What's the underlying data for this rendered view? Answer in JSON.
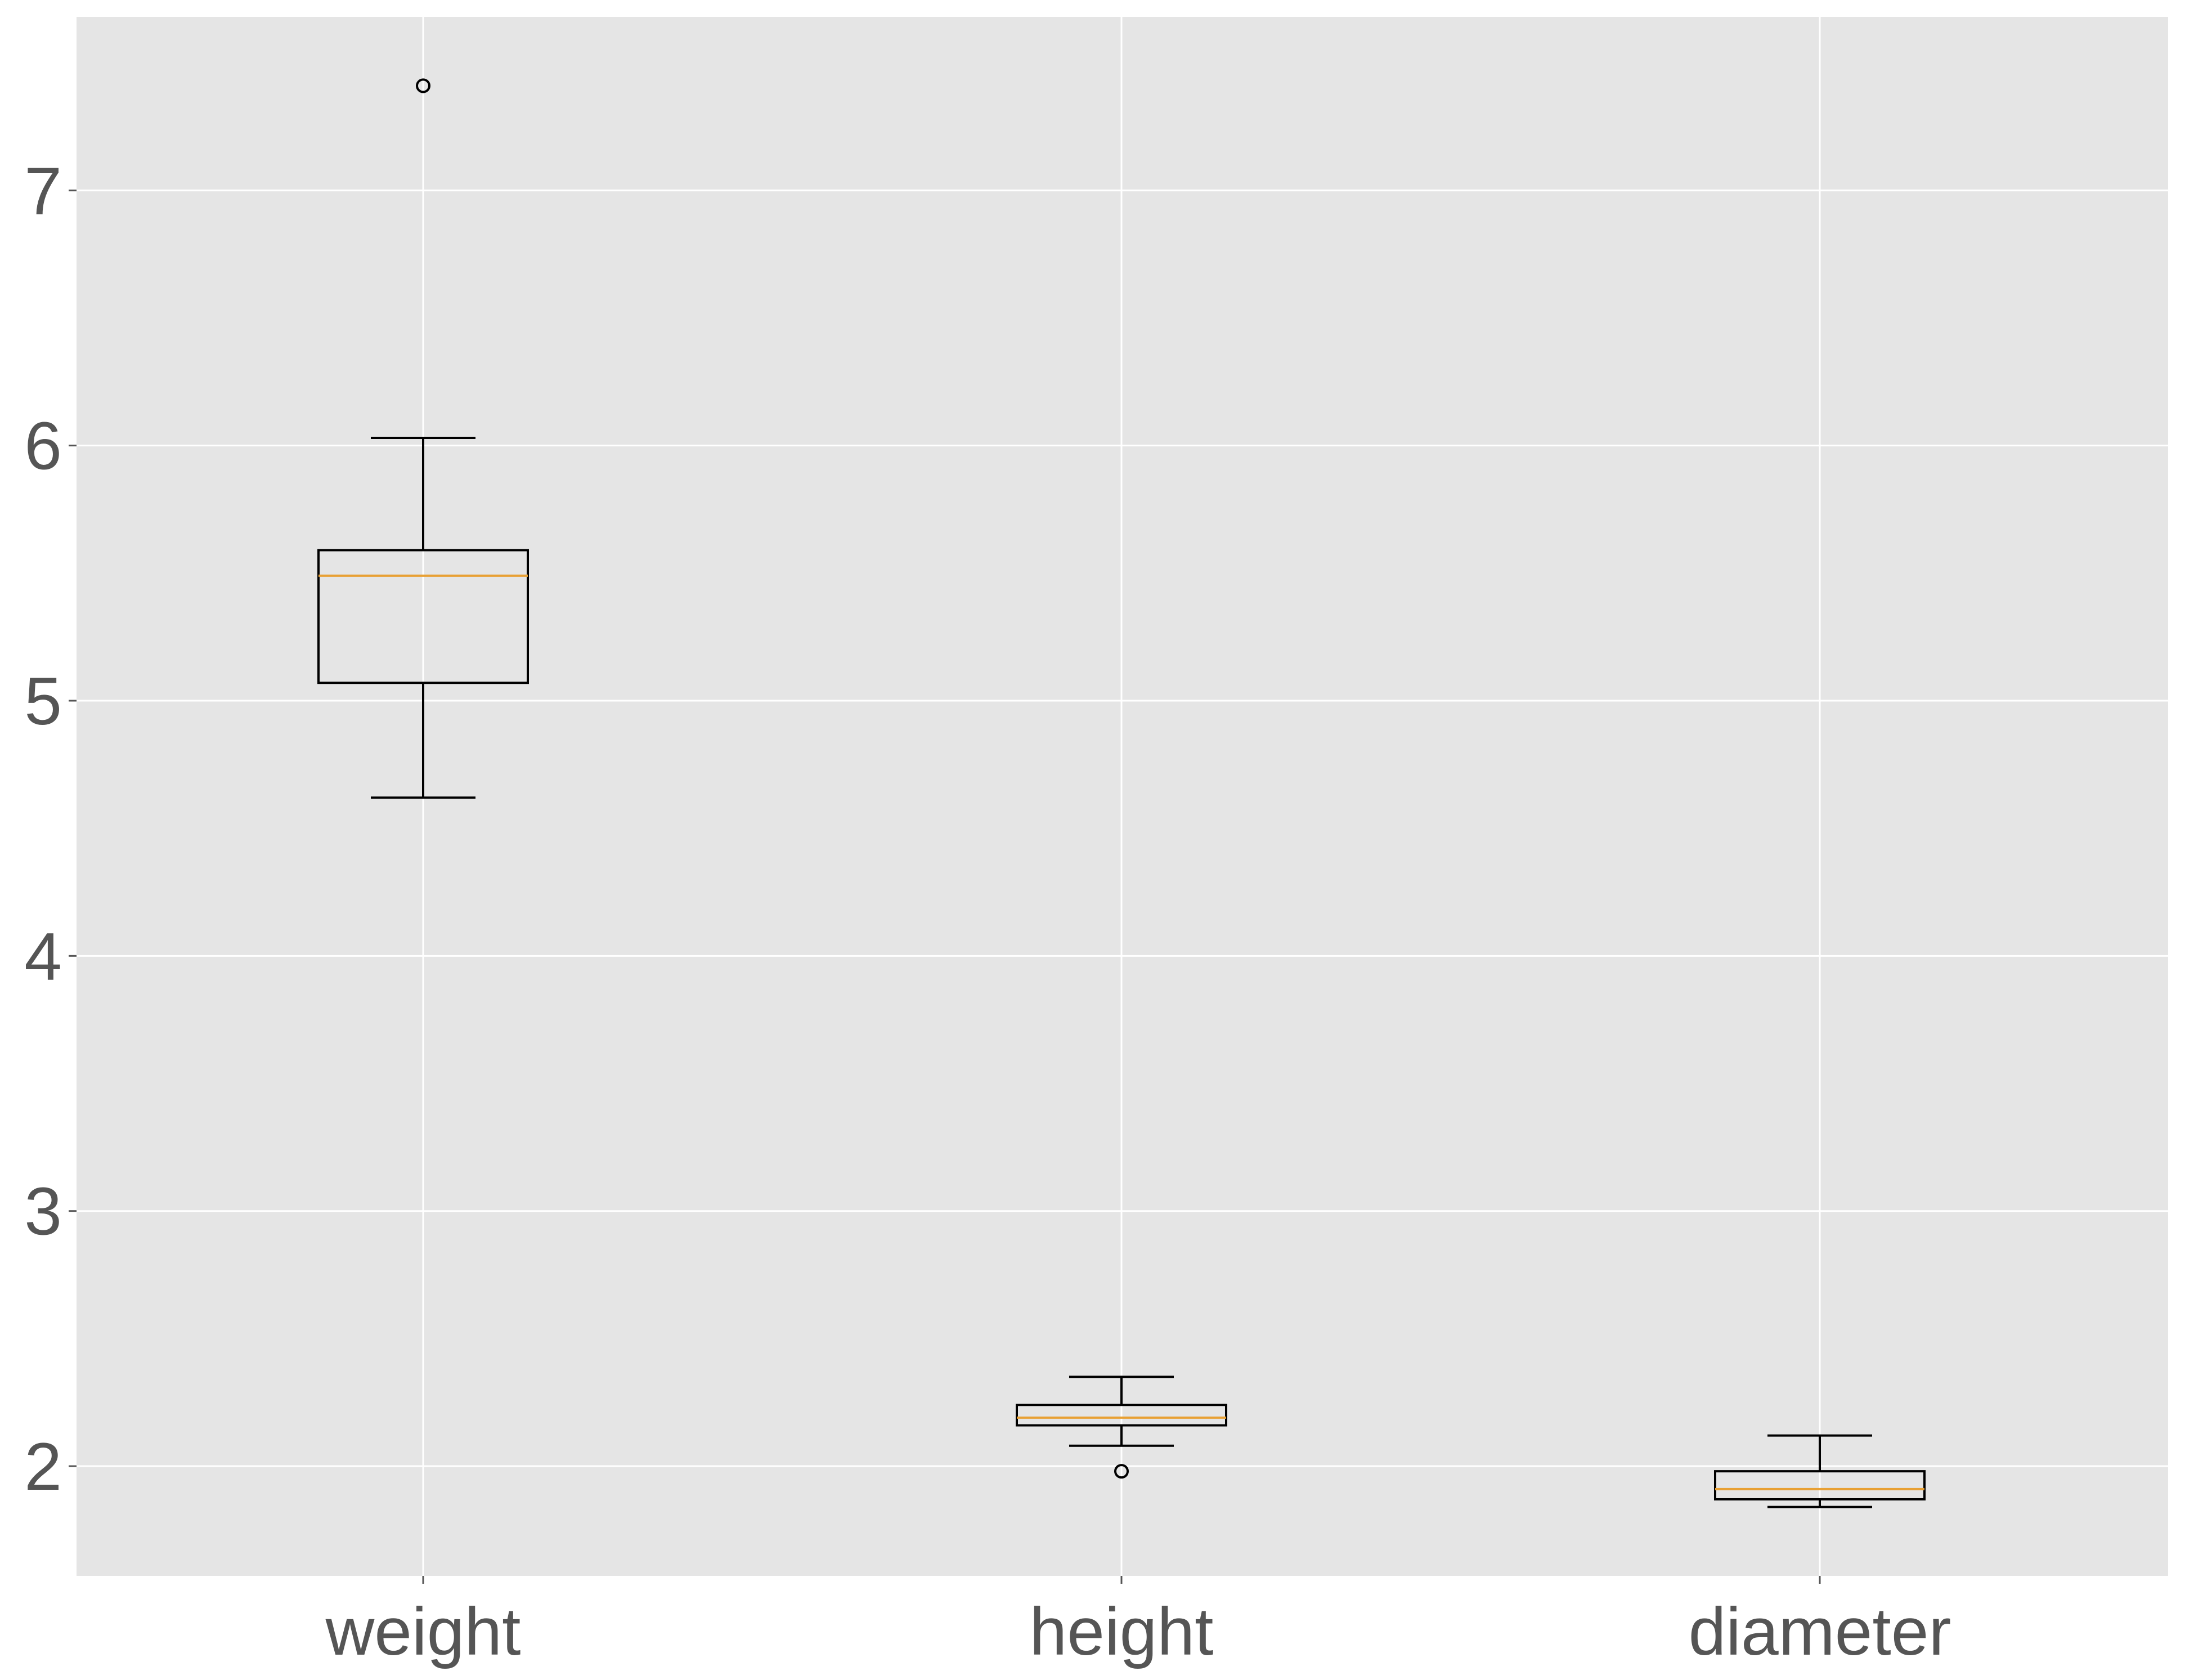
{
  "chart_data": {
    "type": "box",
    "title": "",
    "xlabel": "",
    "ylabel": "",
    "categories": [
      "weight",
      "height",
      "diameter"
    ],
    "ylim": [
      1.57,
      7.68
    ],
    "yticks": [
      2,
      3,
      4,
      5,
      6,
      7
    ],
    "grid": true,
    "style": "ggplot",
    "colors": {
      "panel_background": "#e5e5e5",
      "grid": "#ffffff",
      "box_edge": "#000000",
      "median": "#e8a033",
      "tick_label": "#555555"
    },
    "boxes": [
      {
        "name": "weight",
        "whisker_low": 4.62,
        "q1": 5.07,
        "median": 5.49,
        "q3": 5.59,
        "whisker_high": 6.03,
        "outliers": [
          7.41
        ]
      },
      {
        "name": "height",
        "whisker_low": 2.08,
        "q1": 2.16,
        "median": 2.19,
        "q3": 2.24,
        "whisker_high": 2.35,
        "outliers": [
          1.98
        ]
      },
      {
        "name": "diameter",
        "whisker_low": 1.84,
        "q1": 1.87,
        "median": 1.91,
        "q3": 1.98,
        "whisker_high": 2.12,
        "outliers": []
      }
    ]
  }
}
